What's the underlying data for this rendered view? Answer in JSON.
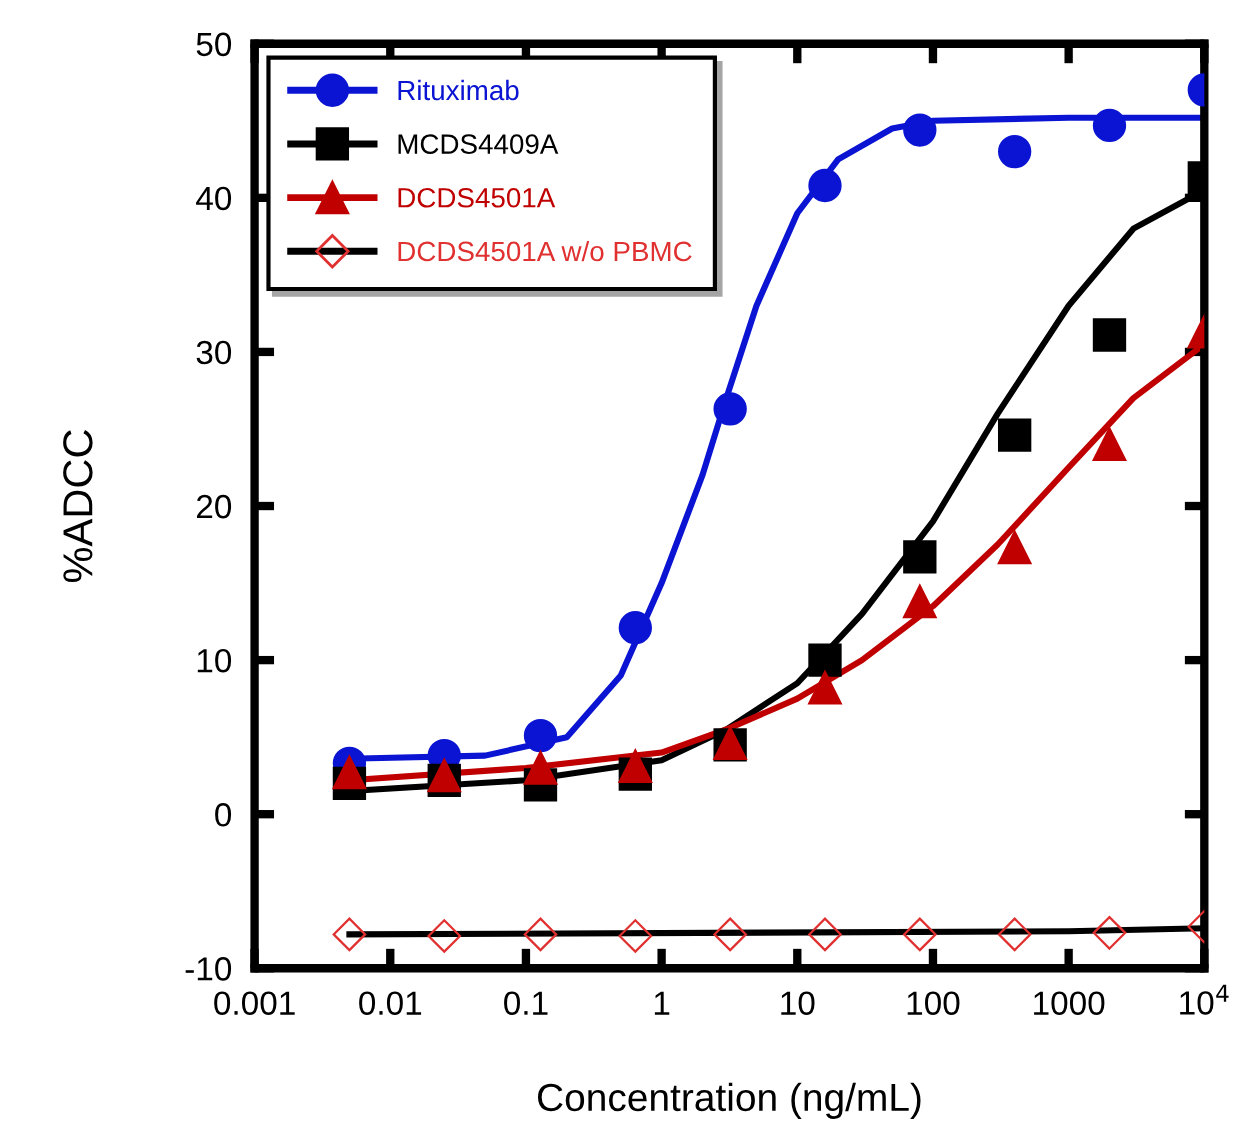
{
  "chart_data": {
    "type": "scatter",
    "xlabel": "Concentration (ng/mL)",
    "ylabel": "%ADCC",
    "log": "x",
    "grid": false,
    "legend": "top left",
    "xlim": [
      0.001,
      10000
    ],
    "xticks": [
      0.001,
      0.01,
      0.1,
      1,
      10,
      100,
      1000,
      {
        "value": 10000,
        "label": "10$^{4}$"
      }
    ],
    "ylim": [
      -10,
      50
    ],
    "yticks": [
      -10,
      0,
      10,
      20,
      30,
      40,
      50
    ],
    "series": [
      {
        "name": "Rituximab",
        "color": "#0a14d2",
        "marker": "circle",
        "x": [
          0.005,
          0.025,
          0.128,
          0.64,
          3.2,
          16,
          80,
          400,
          2000,
          10000
        ],
        "values": [
          3.3,
          3.8,
          5.1,
          12.1,
          26.3,
          40.8,
          44.4,
          43.0,
          44.7,
          47.0
        ]
      },
      {
        "name": "MCDS4409A",
        "color": "#000000",
        "marker": "square",
        "x": [
          0.005,
          0.025,
          0.128,
          0.64,
          3.2,
          16,
          80,
          400,
          2000,
          10000
        ],
        "values": [
          2.0,
          2.2,
          1.9,
          2.6,
          4.5,
          10.0,
          16.7,
          24.6,
          31.1,
          41.3
        ]
      },
      {
        "name": "DCDS4501A",
        "color": "#c00000",
        "marker": "triangle",
        "x": [
          0.005,
          0.025,
          0.128,
          0.64,
          3.2,
          16,
          80,
          400,
          2000,
          10000
        ],
        "values": [
          2.7,
          2.5,
          3.0,
          3.1,
          4.6,
          8.2,
          13.8,
          17.3,
          24.0,
          31.3
        ]
      },
      {
        "name": "DCDS4501A w/o PBMC",
        "color": "#e03030",
        "marker": "diamond",
        "x": [
          0.005,
          0.025,
          0.128,
          0.64,
          3.2,
          16,
          80,
          400,
          2000,
          10000
        ],
        "values": [
          -7.8,
          -7.9,
          -7.8,
          -7.9,
          -7.8,
          -7.8,
          -7.8,
          -7.8,
          -7.7,
          -7.3
        ]
      },
      {
        "type": "line",
        "color": "#0a14d2",
        "x": [
          0.005,
          0.05,
          0.2,
          0.5,
          1,
          2,
          3,
          5,
          10,
          20,
          50,
          100,
          1000,
          10000
        ],
        "values": [
          3.6,
          3.8,
          5,
          9,
          15,
          22,
          27,
          33,
          39,
          42.5,
          44.5,
          45,
          45.2,
          45.2
        ]
      },
      {
        "type": "line",
        "color": "#000000",
        "x": [
          0.005,
          0.1,
          1,
          3,
          10,
          30,
          100,
          300,
          1000,
          3000,
          10000
        ],
        "values": [
          1.5,
          2.2,
          3.5,
          5.5,
          8.5,
          13,
          19,
          26,
          33,
          38,
          40.5
        ]
      },
      {
        "type": "line",
        "color": "#c00000",
        "x": [
          0.005,
          0.1,
          1,
          3,
          10,
          30,
          100,
          300,
          1000,
          3000,
          10000
        ],
        "values": [
          2.2,
          3,
          4,
          5.5,
          7.5,
          10,
          13.5,
          17.5,
          22.5,
          27,
          30.5
        ]
      },
      {
        "type": "line",
        "color": "#000000",
        "x": [
          0.005,
          1000,
          10000
        ],
        "values": [
          -7.8,
          -7.6,
          -7.4
        ]
      }
    ]
  }
}
